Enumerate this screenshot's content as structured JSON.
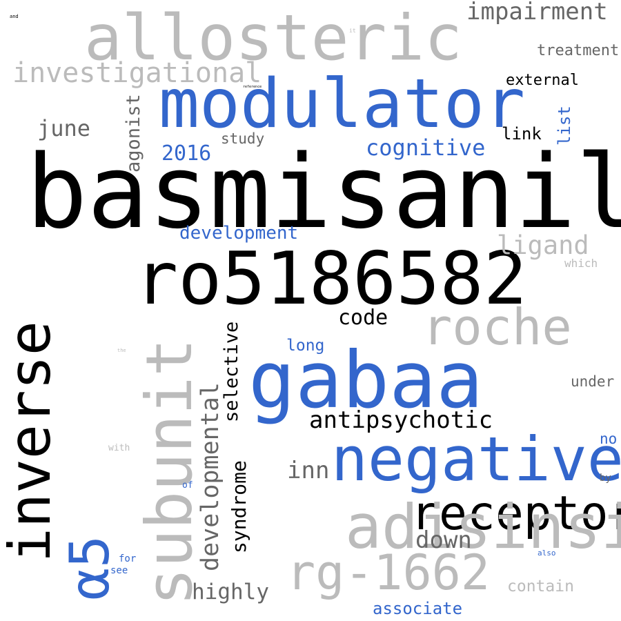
{
  "colors": {
    "black": "#000000",
    "blue": "#3366cc",
    "gray": "#666666",
    "silver": "#bbbbbb"
  },
  "words": [
    {
      "text": "basmisanil",
      "color": "black"
    },
    {
      "text": "ro5186582",
      "color": "black"
    },
    {
      "text": "modulator",
      "color": "blue"
    },
    {
      "text": "allosteric",
      "color": "silver"
    },
    {
      "text": "gabaa",
      "color": "blue"
    },
    {
      "text": "negative",
      "color": "blue"
    },
    {
      "text": "receptor",
      "color": "black"
    },
    {
      "text": "adisinsight",
      "color": "silver"
    },
    {
      "text": "rg-1662",
      "color": "silver"
    },
    {
      "text": "roche",
      "color": "silver"
    },
    {
      "text": "inverse",
      "color": "black"
    },
    {
      "text": "α5",
      "color": "blue"
    },
    {
      "text": "subunit",
      "color": "silver"
    },
    {
      "text": "investigational",
      "color": "silver"
    },
    {
      "text": "impairment",
      "color": "gray"
    },
    {
      "text": "treatment",
      "color": "gray"
    },
    {
      "text": "external",
      "color": "black"
    },
    {
      "text": "cognitive",
      "color": "blue"
    },
    {
      "text": "link",
      "color": "black"
    },
    {
      "text": "list",
      "color": "blue"
    },
    {
      "text": "june",
      "color": "gray"
    },
    {
      "text": "agonist",
      "color": "gray"
    },
    {
      "text": "study",
      "color": "gray"
    },
    {
      "text": "2016",
      "color": "blue"
    },
    {
      "text": "development",
      "color": "blue"
    },
    {
      "text": "ligand",
      "color": "silver"
    },
    {
      "text": "which",
      "color": "silver"
    },
    {
      "text": "code",
      "color": "black"
    },
    {
      "text": "long",
      "color": "blue"
    },
    {
      "text": "selective",
      "color": "black"
    },
    {
      "text": "developmental",
      "color": "gray"
    },
    {
      "text": "syndrome",
      "color": "black"
    },
    {
      "text": "antipsychotic",
      "color": "black"
    },
    {
      "text": "under",
      "color": "gray"
    },
    {
      "text": "no",
      "color": "blue"
    },
    {
      "text": "inn",
      "color": "gray"
    },
    {
      "text": "by",
      "color": "gray"
    },
    {
      "text": "down",
      "color": "gray"
    },
    {
      "text": "highly",
      "color": "gray"
    },
    {
      "text": "contain",
      "color": "silver"
    },
    {
      "text": "associate",
      "color": "blue"
    },
    {
      "text": "also",
      "color": "blue"
    },
    {
      "text": "for",
      "color": "blue"
    },
    {
      "text": "see",
      "color": "blue"
    },
    {
      "text": "of",
      "color": "blue"
    },
    {
      "text": "with",
      "color": "silver"
    },
    {
      "text": "the",
      "color": "silver"
    },
    {
      "text": "and",
      "color": "black"
    },
    {
      "text": "it",
      "color": "silver"
    },
    {
      "text": "reference",
      "color": "black"
    }
  ]
}
